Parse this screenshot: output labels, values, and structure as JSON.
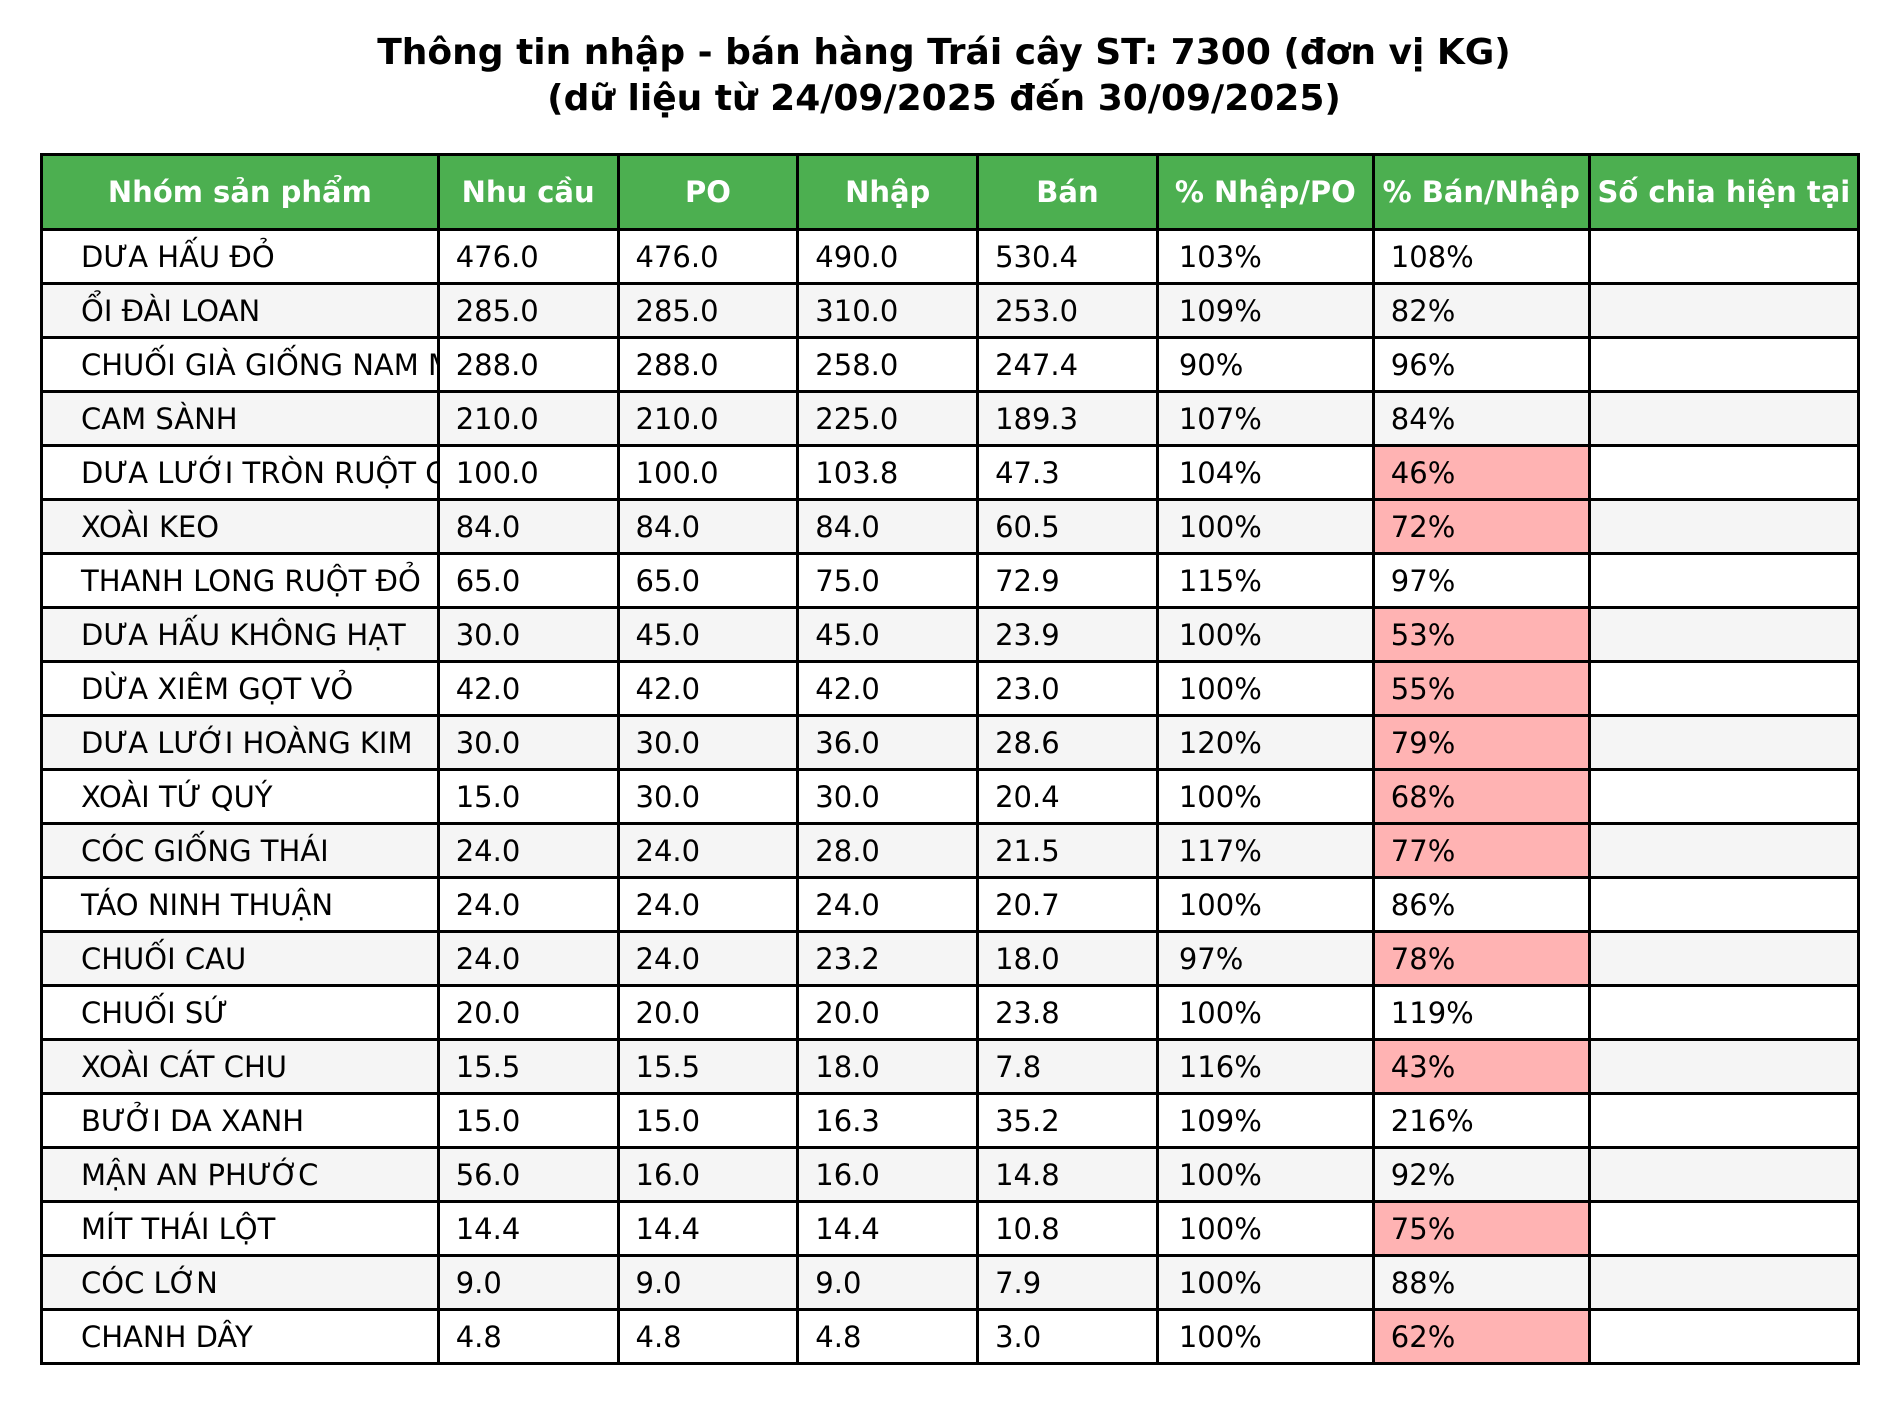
{
  "title": {
    "line1": "Thông tin nhập - bán hàng Trái cây ST: 7300 (đơn vị KG)",
    "line2": "(dữ liệu từ 24/09/2025 đến 30/09/2025)"
  },
  "colors": {
    "header_bg": "#4caf50",
    "header_text": "#ffffff",
    "highlight": "#ffb3b3",
    "row_alt": "#f5f5f5"
  },
  "chart_data": {
    "type": "table",
    "title": "Thông tin nhập - bán hàng Trái cây ST: 7300 (đơn vị KG)",
    "subtitle": "(dữ liệu từ 24/09/2025 đến 30/09/2025)",
    "columns": [
      "Nhóm sản phẩm",
      "Nhu cầu",
      "PO",
      "Nhập",
      "Bán",
      "% Nhập/PO",
      "% Bán/Nhập",
      "Số chia hiện tại"
    ],
    "rows": [
      {
        "name": "DƯA HẤU ĐỎ",
        "nhu_cau": "476.0",
        "po": "476.0",
        "nhap": "490.0",
        "ban": "530.4",
        "pct_nhap_po": "103%",
        "pct_ban_nhap": "108%",
        "so_chia": "",
        "highlight": false
      },
      {
        "name": "ỔI ĐÀI LOAN",
        "nhu_cau": "285.0",
        "po": "285.0",
        "nhap": "310.0",
        "ban": "253.0",
        "pct_nhap_po": "109%",
        "pct_ban_nhap": "82%",
        "so_chia": "",
        "highlight": false
      },
      {
        "name": "CHUỐI GIÀ GIỐNG NAM M",
        "nhu_cau": "288.0",
        "po": "288.0",
        "nhap": "258.0",
        "ban": "247.4",
        "pct_nhap_po": "90%",
        "pct_ban_nhap": "96%",
        "so_chia": "",
        "highlight": false
      },
      {
        "name": "CAM SÀNH",
        "nhu_cau": "210.0",
        "po": "210.0",
        "nhap": "225.0",
        "ban": "189.3",
        "pct_nhap_po": "107%",
        "pct_ban_nhap": "84%",
        "so_chia": "",
        "highlight": false
      },
      {
        "name": "DƯA LƯỚI TRÒN RUỘT CA",
        "nhu_cau": "100.0",
        "po": "100.0",
        "nhap": "103.8",
        "ban": "47.3",
        "pct_nhap_po": "104%",
        "pct_ban_nhap": "46%",
        "so_chia": "",
        "highlight": true
      },
      {
        "name": "XOÀI KEO",
        "nhu_cau": "84.0",
        "po": "84.0",
        "nhap": "84.0",
        "ban": "60.5",
        "pct_nhap_po": "100%",
        "pct_ban_nhap": "72%",
        "so_chia": "",
        "highlight": true
      },
      {
        "name": "THANH LONG RUỘT ĐỎ",
        "nhu_cau": "65.0",
        "po": "65.0",
        "nhap": "75.0",
        "ban": "72.9",
        "pct_nhap_po": "115%",
        "pct_ban_nhap": "97%",
        "so_chia": "",
        "highlight": false
      },
      {
        "name": "DƯA HẤU KHÔNG HẠT",
        "nhu_cau": "30.0",
        "po": "45.0",
        "nhap": "45.0",
        "ban": "23.9",
        "pct_nhap_po": "100%",
        "pct_ban_nhap": "53%",
        "so_chia": "",
        "highlight": true
      },
      {
        "name": "DỪA XIÊM GỌT VỎ",
        "nhu_cau": "42.0",
        "po": "42.0",
        "nhap": "42.0",
        "ban": "23.0",
        "pct_nhap_po": "100%",
        "pct_ban_nhap": "55%",
        "so_chia": "",
        "highlight": true
      },
      {
        "name": "DƯA LƯỚI HOÀNG KIM",
        "nhu_cau": "30.0",
        "po": "30.0",
        "nhap": "36.0",
        "ban": "28.6",
        "pct_nhap_po": "120%",
        "pct_ban_nhap": "79%",
        "so_chia": "",
        "highlight": true
      },
      {
        "name": "XOÀI TỨ QUÝ",
        "nhu_cau": "15.0",
        "po": "30.0",
        "nhap": "30.0",
        "ban": "20.4",
        "pct_nhap_po": "100%",
        "pct_ban_nhap": "68%",
        "so_chia": "",
        "highlight": true
      },
      {
        "name": "CÓC GIỐNG THÁI",
        "nhu_cau": "24.0",
        "po": "24.0",
        "nhap": "28.0",
        "ban": "21.5",
        "pct_nhap_po": "117%",
        "pct_ban_nhap": "77%",
        "so_chia": "",
        "highlight": true
      },
      {
        "name": "TÁO NINH THUẬN",
        "nhu_cau": "24.0",
        "po": "24.0",
        "nhap": "24.0",
        "ban": "20.7",
        "pct_nhap_po": "100%",
        "pct_ban_nhap": "86%",
        "so_chia": "",
        "highlight": false
      },
      {
        "name": "CHUỐI CAU",
        "nhu_cau": "24.0",
        "po": "24.0",
        "nhap": "23.2",
        "ban": "18.0",
        "pct_nhap_po": "97%",
        "pct_ban_nhap": "78%",
        "so_chia": "",
        "highlight": true
      },
      {
        "name": "CHUỐI SỨ",
        "nhu_cau": "20.0",
        "po": "20.0",
        "nhap": "20.0",
        "ban": "23.8",
        "pct_nhap_po": "100%",
        "pct_ban_nhap": "119%",
        "so_chia": "",
        "highlight": false
      },
      {
        "name": "XOÀI CÁT CHU",
        "nhu_cau": "15.5",
        "po": "15.5",
        "nhap": "18.0",
        "ban": "7.8",
        "pct_nhap_po": "116%",
        "pct_ban_nhap": "43%",
        "so_chia": "",
        "highlight": true
      },
      {
        "name": "BƯỞI DA XANH",
        "nhu_cau": "15.0",
        "po": "15.0",
        "nhap": "16.3",
        "ban": "35.2",
        "pct_nhap_po": "109%",
        "pct_ban_nhap": "216%",
        "so_chia": "",
        "highlight": false
      },
      {
        "name": "MẬN AN PHƯỚC",
        "nhu_cau": "56.0",
        "po": "16.0",
        "nhap": "16.0",
        "ban": "14.8",
        "pct_nhap_po": "100%",
        "pct_ban_nhap": "92%",
        "so_chia": "",
        "highlight": false
      },
      {
        "name": "MÍT THÁI LỘT",
        "nhu_cau": "14.4",
        "po": "14.4",
        "nhap": "14.4",
        "ban": "10.8",
        "pct_nhap_po": "100%",
        "pct_ban_nhap": "75%",
        "so_chia": "",
        "highlight": true
      },
      {
        "name": "CÓC LỚN",
        "nhu_cau": "9.0",
        "po": "9.0",
        "nhap": "9.0",
        "ban": "7.9",
        "pct_nhap_po": "100%",
        "pct_ban_nhap": "88%",
        "so_chia": "",
        "highlight": false
      },
      {
        "name": "CHANH DÂY",
        "nhu_cau": "4.8",
        "po": "4.8",
        "nhap": "4.8",
        "ban": "3.0",
        "pct_nhap_po": "100%",
        "pct_ban_nhap": "62%",
        "so_chia": "",
        "highlight": true
      }
    ]
  }
}
